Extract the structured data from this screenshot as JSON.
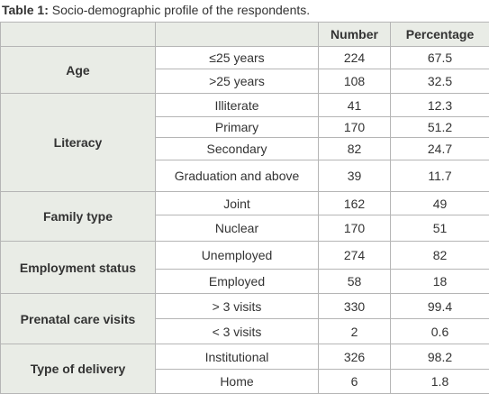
{
  "caption": {
    "label": "Table 1:",
    "text": "Socio-demographic profile of the respondents."
  },
  "table": {
    "header": [
      "Number",
      "Percentage"
    ],
    "groups": [
      {
        "label": "Age",
        "rows": [
          [
            "≤25 years",
            "224",
            "67.5"
          ],
          [
            ">25 years",
            "108",
            "32.5"
          ]
        ]
      },
      {
        "label": "Literacy",
        "rows": [
          [
            "Illiterate",
            "41",
            "12.3"
          ],
          [
            "Primary",
            "170",
            "51.2"
          ],
          [
            "Secondary",
            "82",
            "24.7"
          ],
          [
            "Graduation and above",
            "39",
            "11.7"
          ]
        ]
      },
      {
        "label": "Family type",
        "rows": [
          [
            "Joint",
            "162",
            "49"
          ],
          [
            "Nuclear",
            "170",
            "51"
          ]
        ]
      },
      {
        "label": "Employment status",
        "rows": [
          [
            "Unemployed",
            "274",
            "82"
          ],
          [
            "Employed",
            "58",
            "18"
          ]
        ]
      },
      {
        "label": "Prenatal care visits",
        "rows": [
          [
            "> 3 visits",
            "330",
            "99.4"
          ],
          [
            "< 3 visits",
            "2",
            "0.6"
          ]
        ]
      },
      {
        "label": "Type of delivery",
        "rows": [
          [
            "Institutional",
            "326",
            "98.2"
          ],
          [
            "Home",
            "6",
            "1.8"
          ]
        ]
      }
    ]
  }
}
